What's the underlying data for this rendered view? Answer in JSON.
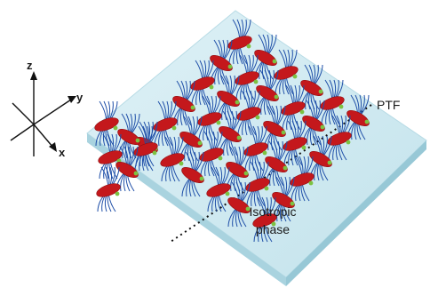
{
  "labels": {
    "ptf": "PTF",
    "isotropic_line1": "Isotropic",
    "isotropic_line2": "phase"
  },
  "axes": {
    "z": "z",
    "y": "y",
    "x": "x"
  },
  "colors": {
    "substrate_top": "#cfe9f0",
    "substrate_edge": "#a9d3df",
    "chain": "#1f4fa8",
    "core": "#c4181c",
    "linker": "#7cc242"
  }
}
